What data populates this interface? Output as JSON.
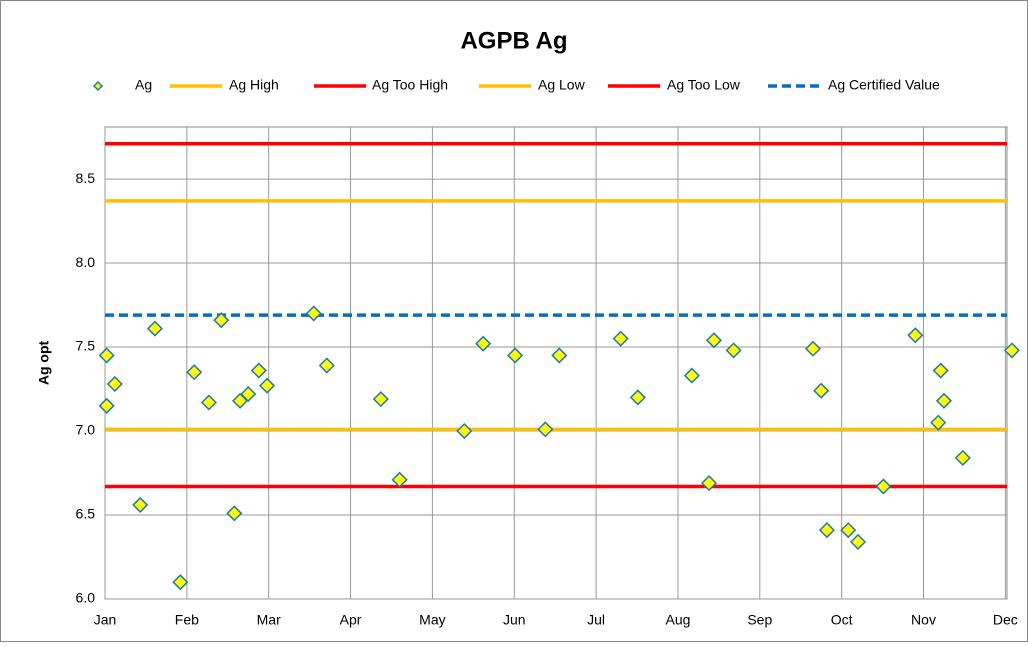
{
  "chart_data": {
    "type": "scatter",
    "title": "AGPB Ag",
    "y_label": "Ag opt",
    "xlim": [
      0,
      11.02
    ],
    "ylim": [
      6.0,
      8.81
    ],
    "xticks": [
      {
        "value": 0,
        "label": "Jan"
      },
      {
        "value": 1,
        "label": "Feb"
      },
      {
        "value": 2,
        "label": "Mar"
      },
      {
        "value": 3,
        "label": "Apr"
      },
      {
        "value": 4,
        "label": "May"
      },
      {
        "value": 5,
        "label": "Jun"
      },
      {
        "value": 6,
        "label": "Jul"
      },
      {
        "value": 7,
        "label": "Aug"
      },
      {
        "value": 8,
        "label": "Sep"
      },
      {
        "value": 9,
        "label": "Oct"
      },
      {
        "value": 10,
        "label": "Nov"
      },
      {
        "value": 11,
        "label": "Dec"
      }
    ],
    "yticks": [
      {
        "value": 6,
        "label": "6.0"
      },
      {
        "value": 6.5,
        "label": "6.5"
      },
      {
        "value": 7,
        "label": "7.0"
      },
      {
        "value": 7.5,
        "label": "7.5"
      },
      {
        "value": 8,
        "label": "8.0"
      },
      {
        "value": 8.5,
        "label": "8.5"
      }
    ],
    "grid": true,
    "legend": "top",
    "series": [
      {
        "name": "Ag",
        "color": "#ffff00",
        "edge_color": "#1f77b4",
        "marker": "diamond",
        "x": [
          0.02,
          0.02,
          0.12,
          0.43,
          0.61,
          0.92,
          1.09,
          1.27,
          1.42,
          1.58,
          1.65,
          1.75,
          1.88,
          1.98,
          2.55,
          2.71,
          3.37,
          3.6,
          4.39,
          4.62,
          5.01,
          5.38,
          5.55,
          6.3,
          6.51,
          7.17,
          7.38,
          7.44,
          7.68,
          8.65,
          8.75,
          8.82,
          9.08,
          9.2,
          9.51,
          9.9,
          10.18,
          10.21,
          10.25,
          10.48,
          11.08
        ],
        "values": [
          7.45,
          7.15,
          7.28,
          6.56,
          7.61,
          6.1,
          7.35,
          7.17,
          7.66,
          6.51,
          7.18,
          7.22,
          7.36,
          7.27,
          7.7,
          7.39,
          7.19,
          6.71,
          7.0,
          7.52,
          7.45,
          7.01,
          7.45,
          7.55,
          7.2,
          7.33,
          6.69,
          7.54,
          7.48,
          7.49,
          7.24,
          6.41,
          6.41,
          6.34,
          6.67,
          7.57,
          7.05,
          7.36,
          7.18,
          6.84,
          7.48
        ]
      },
      {
        "name": "Ag High",
        "color": "#ffc000",
        "x": [
          0,
          11.02
        ],
        "values": [
          8.37,
          8.37
        ]
      },
      {
        "name": "Ag Too High",
        "color": "#ff0000",
        "x": [
          0,
          11.02
        ],
        "values": [
          8.71,
          8.71
        ]
      },
      {
        "name": "Ag Low",
        "color": "#ffc000",
        "x": [
          0,
          11.02
        ],
        "values": [
          7.01,
          7.01
        ]
      },
      {
        "name": "Ag Too Low",
        "color": "#ff0000",
        "x": [
          0,
          11.02
        ],
        "values": [
          6.67,
          6.67
        ]
      },
      {
        "name": "Ag Certified Value",
        "color": "#0070c0",
        "dash": true,
        "x": [
          0,
          11.02
        ],
        "values": [
          7.69,
          7.69
        ]
      }
    ]
  }
}
